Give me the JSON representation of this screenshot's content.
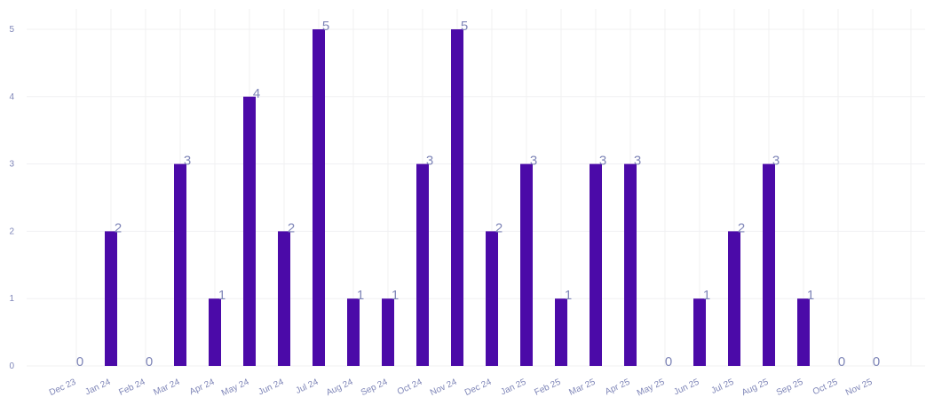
{
  "chart_data": {
    "type": "bar",
    "title": "",
    "xlabel": "",
    "ylabel": "",
    "categories": [
      "Dec 23",
      "Jan 24",
      "Feb 24",
      "Mar 24",
      "Apr 24",
      "May 24",
      "Jun 24",
      "Jul 24",
      "Aug 24",
      "Sep 24",
      "Oct 24",
      "Nov 24",
      "Dec 24",
      "Jan 25",
      "Feb 25",
      "Mar 25",
      "Apr 25",
      "May 25",
      "Jun 25",
      "Jul 25",
      "Aug 25",
      "Sep 25",
      "Oct 25",
      "Nov 25"
    ],
    "values": [
      0,
      2,
      0,
      3,
      1,
      4,
      2,
      5,
      1,
      1,
      3,
      5,
      2,
      3,
      1,
      3,
      3,
      0,
      1,
      2,
      3,
      1,
      0,
      0
    ],
    "ylim": [
      0,
      5
    ],
    "yticks": [
      0,
      1,
      2,
      3,
      4,
      5
    ],
    "grid": true,
    "bar_color": "#4b0aa8",
    "label_color": "#7f86b8"
  }
}
